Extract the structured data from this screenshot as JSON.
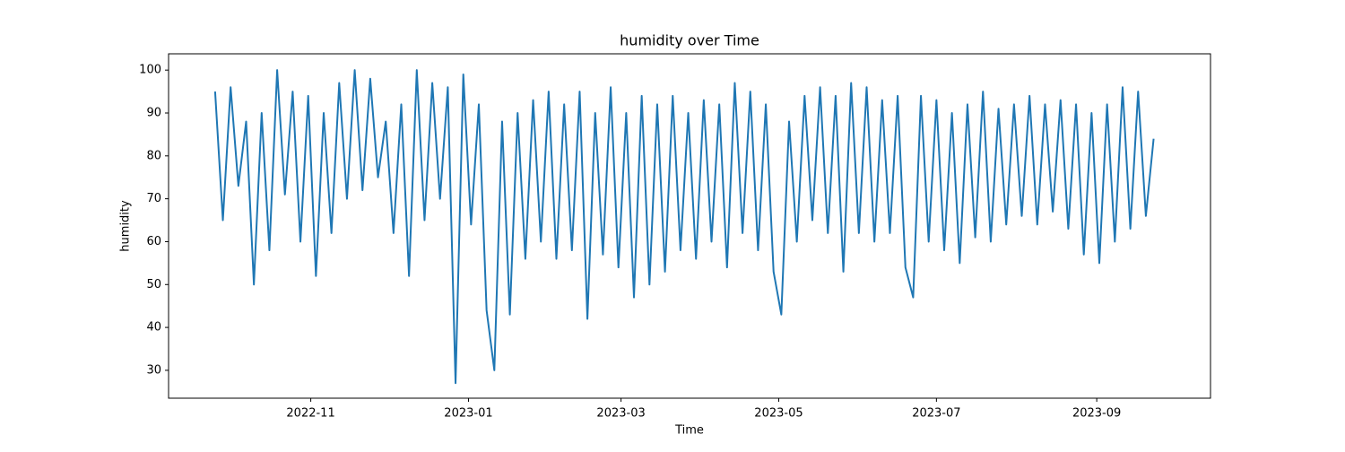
{
  "chart_data": {
    "type": "line",
    "title": "humidity over Time",
    "x_label": "Time",
    "y_label": "humidity",
    "x": [
      "2022-09-25",
      "2022-09-28",
      "2022-10-01",
      "2022-10-04",
      "2022-10-07",
      "2022-10-10",
      "2022-10-13",
      "2022-10-16",
      "2022-10-19",
      "2022-10-22",
      "2022-10-25",
      "2022-10-28",
      "2022-10-31",
      "2022-11-03",
      "2022-11-06",
      "2022-11-09",
      "2022-11-12",
      "2022-11-15",
      "2022-11-18",
      "2022-11-21",
      "2022-11-24",
      "2022-11-27",
      "2022-11-30",
      "2022-12-03",
      "2022-12-06",
      "2022-12-09",
      "2022-12-12",
      "2022-12-15",
      "2022-12-18",
      "2022-12-21",
      "2022-12-24",
      "2022-12-27",
      "2022-12-30",
      "2023-01-02",
      "2023-01-05",
      "2023-01-08",
      "2023-01-11",
      "2023-01-14",
      "2023-01-17",
      "2023-01-20",
      "2023-01-23",
      "2023-01-26",
      "2023-01-29",
      "2023-02-01",
      "2023-02-04",
      "2023-02-07",
      "2023-02-10",
      "2023-02-13",
      "2023-02-16",
      "2023-02-19",
      "2023-02-22",
      "2023-02-25",
      "2023-02-28",
      "2023-03-03",
      "2023-03-06",
      "2023-03-09",
      "2023-03-12",
      "2023-03-15",
      "2023-03-18",
      "2023-03-21",
      "2023-03-24",
      "2023-03-27",
      "2023-03-30",
      "2023-04-02",
      "2023-04-05",
      "2023-04-08",
      "2023-04-11",
      "2023-04-14",
      "2023-04-17",
      "2023-04-20",
      "2023-04-23",
      "2023-04-26",
      "2023-04-29",
      "2023-05-02",
      "2023-05-05",
      "2023-05-08",
      "2023-05-11",
      "2023-05-14",
      "2023-05-17",
      "2023-05-20",
      "2023-05-23",
      "2023-05-26",
      "2023-05-29",
      "2023-06-01",
      "2023-06-04",
      "2023-06-07",
      "2023-06-10",
      "2023-06-13",
      "2023-06-16",
      "2023-06-19",
      "2023-06-22",
      "2023-06-25",
      "2023-06-28",
      "2023-07-01",
      "2023-07-04",
      "2023-07-07",
      "2023-07-10",
      "2023-07-13",
      "2023-07-16",
      "2023-07-19",
      "2023-07-22",
      "2023-07-25",
      "2023-07-28",
      "2023-07-31",
      "2023-08-03",
      "2023-08-06",
      "2023-08-09",
      "2023-08-12",
      "2023-08-15",
      "2023-08-18",
      "2023-08-21",
      "2023-08-24",
      "2023-08-27",
      "2023-08-30",
      "2023-09-02",
      "2023-09-05",
      "2023-09-08",
      "2023-09-11",
      "2023-09-14",
      "2023-09-17",
      "2023-09-20",
      "2023-09-23"
    ],
    "series": [
      {
        "name": "humidity",
        "color": "#1f77b4",
        "values": [
          95,
          65,
          96,
          73,
          88,
          50,
          90,
          58,
          100,
          71,
          95,
          60,
          94,
          52,
          90,
          62,
          97,
          70,
          100,
          72,
          98,
          75,
          88,
          62,
          92,
          52,
          100,
          65,
          97,
          70,
          96,
          27,
          99,
          64,
          92,
          44,
          30,
          88,
          43,
          90,
          56,
          93,
          60,
          95,
          56,
          92,
          58,
          95,
          42,
          90,
          57,
          96,
          54,
          90,
          47,
          94,
          50,
          92,
          53,
          94,
          58,
          90,
          56,
          93,
          60,
          92,
          54,
          97,
          62,
          95,
          58,
          92,
          53,
          43,
          88,
          60,
          94,
          65,
          96,
          62,
          94,
          53,
          97,
          62,
          96,
          60,
          93,
          62,
          94,
          54,
          47,
          94,
          60,
          93,
          58,
          90,
          55,
          92,
          61,
          95,
          60,
          91,
          64,
          92,
          66,
          94,
          64,
          92,
          67,
          93,
          63,
          92,
          57,
          90,
          55,
          92,
          60,
          96,
          63,
          95,
          66,
          84
        ]
      }
    ],
    "xlim": [
      "2022-09-07",
      "2023-10-15"
    ],
    "xticks": [
      {
        "value": "2022-11-01",
        "label": "2022-11"
      },
      {
        "value": "2023-01-01",
        "label": "2023-01"
      },
      {
        "value": "2023-03-01",
        "label": "2023-03"
      },
      {
        "value": "2023-05-01",
        "label": "2023-05"
      },
      {
        "value": "2023-07-01",
        "label": "2023-07"
      },
      {
        "value": "2023-09-01",
        "label": "2023-09"
      }
    ],
    "ylim": [
      23.5,
      103.8
    ],
    "yticks": [
      30,
      40,
      50,
      60,
      70,
      80,
      90,
      100
    ],
    "grid": false
  }
}
